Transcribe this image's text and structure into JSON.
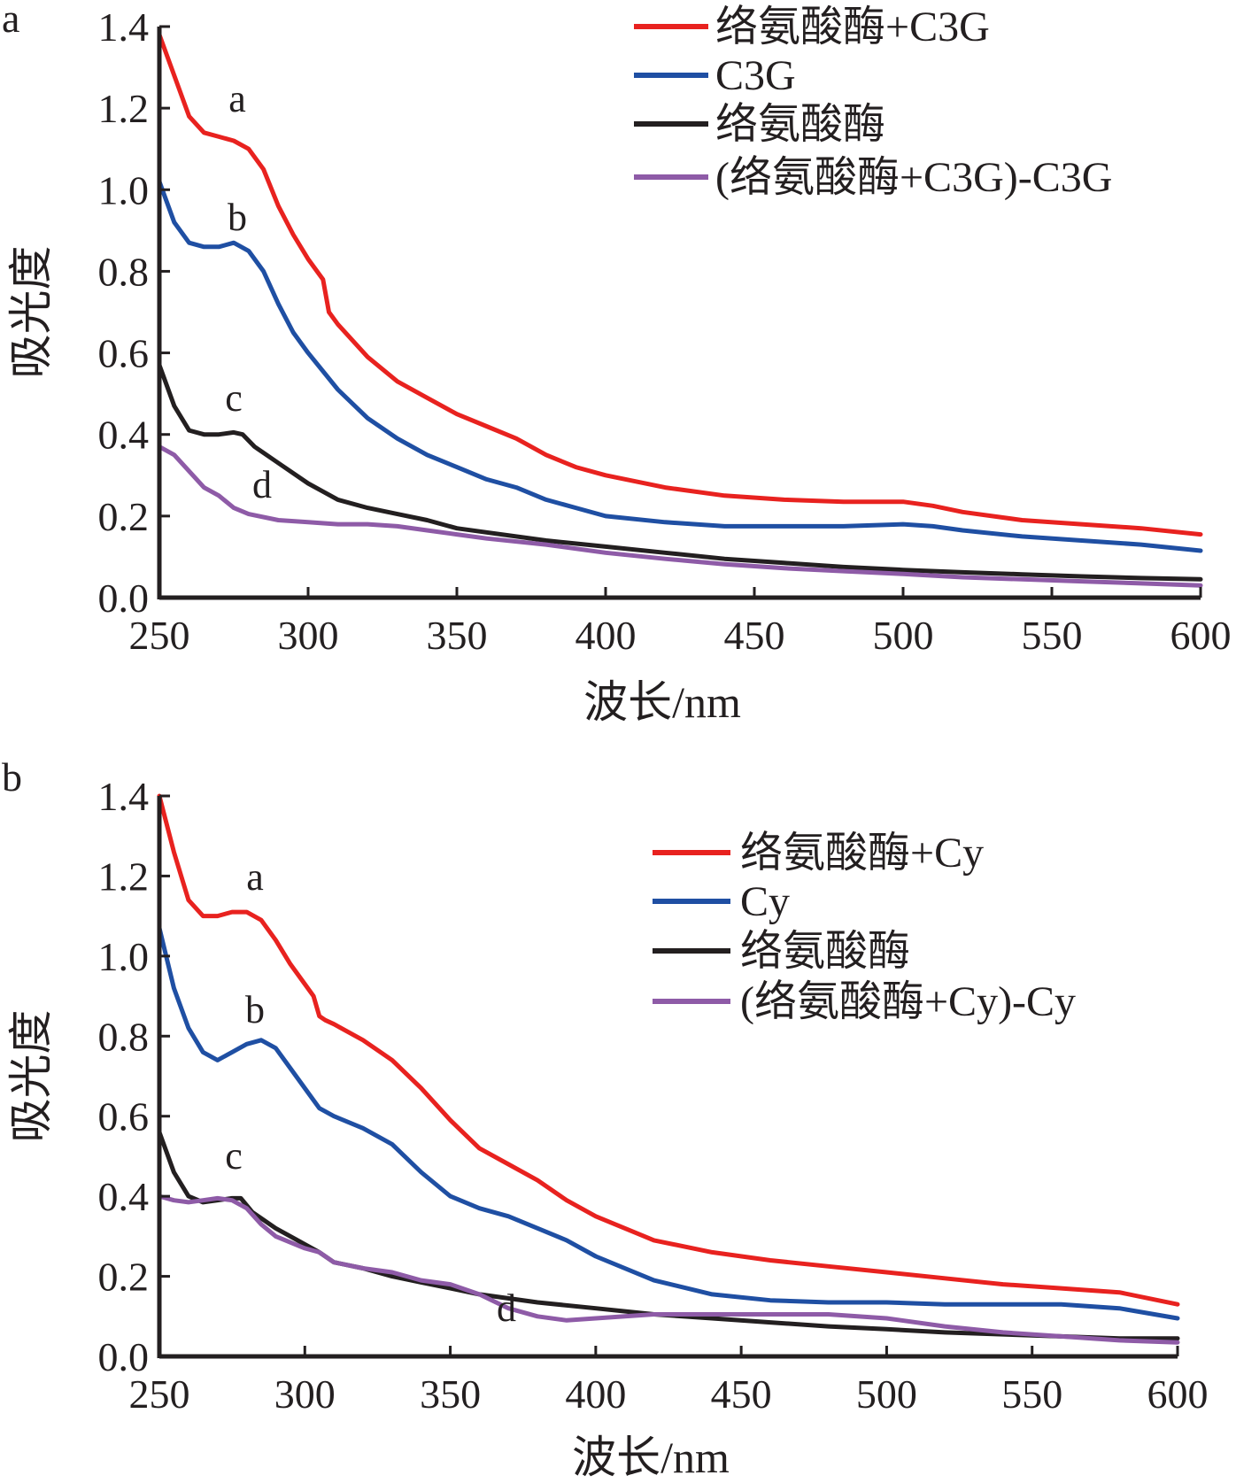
{
  "chart_data": [
    {
      "panel": "a",
      "type": "line",
      "xlabel": "波长/nm",
      "ylabel": "吸光度",
      "xlim": [
        250,
        600
      ],
      "ylim": [
        0,
        1.4
      ],
      "xticks": [
        "250",
        "300",
        "350",
        "400",
        "450",
        "500",
        "550",
        "600"
      ],
      "yticks": [
        "0.0",
        "0.2",
        "0.4",
        "0.6",
        "0.8",
        "1.0",
        "1.2",
        "1.4"
      ],
      "grid": false,
      "legend_position": "top-right",
      "series": [
        {
          "name": "络氨酸酶+C3G",
          "label": "a",
          "color": "#e8221f",
          "x": [
            250,
            255,
            260,
            265,
            270,
            275,
            280,
            285,
            290,
            295,
            300,
            305,
            307,
            310,
            320,
            330,
            340,
            350,
            360,
            370,
            380,
            390,
            400,
            420,
            440,
            460,
            480,
            500,
            510,
            520,
            540,
            560,
            580,
            600
          ],
          "y": [
            1.38,
            1.28,
            1.18,
            1.14,
            1.13,
            1.12,
            1.1,
            1.05,
            0.96,
            0.89,
            0.83,
            0.78,
            0.7,
            0.67,
            0.59,
            0.53,
            0.49,
            0.45,
            0.42,
            0.39,
            0.35,
            0.32,
            0.3,
            0.27,
            0.25,
            0.24,
            0.235,
            0.235,
            0.225,
            0.21,
            0.19,
            0.18,
            0.17,
            0.155
          ]
        },
        {
          "name": "C3G",
          "label": "b",
          "color": "#1f4fa3",
          "x": [
            250,
            255,
            260,
            265,
            270,
            275,
            280,
            285,
            290,
            295,
            300,
            310,
            320,
            330,
            340,
            350,
            360,
            370,
            380,
            390,
            400,
            420,
            440,
            460,
            480,
            500,
            510,
            520,
            540,
            560,
            580,
            600
          ],
          "y": [
            1.02,
            0.92,
            0.87,
            0.86,
            0.86,
            0.87,
            0.85,
            0.8,
            0.72,
            0.65,
            0.6,
            0.51,
            0.44,
            0.39,
            0.35,
            0.32,
            0.29,
            0.27,
            0.24,
            0.22,
            0.2,
            0.185,
            0.175,
            0.175,
            0.175,
            0.18,
            0.175,
            0.165,
            0.15,
            0.14,
            0.13,
            0.115
          ]
        },
        {
          "name": "络氨酸酶",
          "label": "c",
          "color": "#231f20",
          "x": [
            250,
            255,
            260,
            265,
            270,
            275,
            278,
            282,
            290,
            300,
            305,
            310,
            320,
            330,
            340,
            350,
            360,
            380,
            400,
            420,
            440,
            460,
            480,
            500,
            520,
            540,
            560,
            580,
            600
          ],
          "y": [
            0.57,
            0.47,
            0.41,
            0.4,
            0.4,
            0.405,
            0.4,
            0.37,
            0.33,
            0.28,
            0.26,
            0.24,
            0.22,
            0.205,
            0.19,
            0.17,
            0.16,
            0.14,
            0.125,
            0.11,
            0.095,
            0.085,
            0.075,
            0.068,
            0.062,
            0.057,
            0.052,
            0.048,
            0.045
          ]
        },
        {
          "name": "(络氨酸酶+C3G)-C3G",
          "label": "d",
          "color": "#8e5ba7",
          "x": [
            250,
            255,
            260,
            265,
            270,
            275,
            280,
            290,
            300,
            310,
            320,
            330,
            340,
            350,
            360,
            380,
            400,
            420,
            440,
            460,
            480,
            500,
            520,
            540,
            560,
            580,
            600
          ],
          "y": [
            0.37,
            0.35,
            0.31,
            0.27,
            0.25,
            0.22,
            0.205,
            0.19,
            0.185,
            0.18,
            0.18,
            0.175,
            0.165,
            0.155,
            0.145,
            0.13,
            0.11,
            0.095,
            0.082,
            0.072,
            0.065,
            0.058,
            0.05,
            0.045,
            0.04,
            0.035,
            0.03
          ]
        }
      ]
    },
    {
      "panel": "b",
      "type": "line",
      "xlabel": "波长/nm",
      "ylabel": "吸光度",
      "xlim": [
        250,
        600
      ],
      "ylim": [
        0,
        1.4
      ],
      "xticks": [
        "250",
        "300",
        "350",
        "400",
        "450",
        "500",
        "550",
        "600"
      ],
      "yticks": [
        "0.0",
        "0.2",
        "0.4",
        "0.6",
        "0.8",
        "1.0",
        "1.2",
        "1.4"
      ],
      "grid": false,
      "legend_position": "top-right",
      "series": [
        {
          "name": "络氨酸酶+Cy",
          "label": "a",
          "color": "#e8221f",
          "x": [
            250,
            255,
            260,
            265,
            270,
            275,
            280,
            285,
            290,
            295,
            300,
            303,
            305,
            307,
            310,
            320,
            330,
            340,
            350,
            360,
            370,
            380,
            390,
            400,
            420,
            440,
            460,
            480,
            500,
            520,
            540,
            560,
            580,
            600
          ],
          "y": [
            1.4,
            1.26,
            1.14,
            1.1,
            1.1,
            1.11,
            1.11,
            1.09,
            1.04,
            0.98,
            0.93,
            0.9,
            0.85,
            0.84,
            0.83,
            0.79,
            0.74,
            0.67,
            0.59,
            0.52,
            0.48,
            0.44,
            0.39,
            0.35,
            0.29,
            0.26,
            0.24,
            0.225,
            0.21,
            0.195,
            0.18,
            0.17,
            0.16,
            0.13
          ]
        },
        {
          "name": "Cy",
          "label": "b",
          "color": "#1f4fa3",
          "x": [
            250,
            255,
            260,
            265,
            270,
            275,
            280,
            285,
            290,
            295,
            300,
            305,
            310,
            320,
            330,
            340,
            350,
            360,
            370,
            380,
            390,
            400,
            420,
            440,
            460,
            480,
            500,
            520,
            540,
            560,
            580,
            600
          ],
          "y": [
            1.07,
            0.92,
            0.82,
            0.76,
            0.74,
            0.76,
            0.78,
            0.79,
            0.77,
            0.72,
            0.67,
            0.62,
            0.6,
            0.57,
            0.53,
            0.46,
            0.4,
            0.37,
            0.35,
            0.32,
            0.29,
            0.25,
            0.19,
            0.155,
            0.14,
            0.135,
            0.135,
            0.13,
            0.13,
            0.13,
            0.12,
            0.095
          ]
        },
        {
          "name": "络氨酸酶",
          "label": "c",
          "color": "#231f20",
          "x": [
            250,
            255,
            260,
            265,
            270,
            275,
            278,
            282,
            290,
            300,
            305,
            310,
            320,
            330,
            340,
            350,
            360,
            380,
            400,
            420,
            440,
            460,
            480,
            500,
            520,
            540,
            560,
            580,
            600
          ],
          "y": [
            0.56,
            0.46,
            0.4,
            0.385,
            0.39,
            0.395,
            0.395,
            0.36,
            0.32,
            0.28,
            0.26,
            0.235,
            0.22,
            0.2,
            0.185,
            0.17,
            0.155,
            0.135,
            0.12,
            0.105,
            0.095,
            0.085,
            0.075,
            0.068,
            0.06,
            0.055,
            0.05,
            0.045,
            0.045
          ]
        },
        {
          "name": "(络氨酸酶+Cy)-Cy",
          "label": "d",
          "color": "#8e5ba7",
          "x": [
            250,
            255,
            260,
            265,
            270,
            275,
            280,
            285,
            290,
            300,
            305,
            310,
            320,
            330,
            340,
            350,
            360,
            370,
            380,
            390,
            400,
            420,
            440,
            460,
            480,
            500,
            520,
            540,
            560,
            580,
            600
          ],
          "y": [
            0.4,
            0.39,
            0.385,
            0.39,
            0.395,
            0.39,
            0.37,
            0.33,
            0.3,
            0.27,
            0.26,
            0.235,
            0.22,
            0.21,
            0.19,
            0.18,
            0.155,
            0.12,
            0.1,
            0.09,
            0.095,
            0.105,
            0.105,
            0.105,
            0.105,
            0.095,
            0.075,
            0.06,
            0.05,
            0.04,
            0.035
          ]
        }
      ]
    }
  ]
}
